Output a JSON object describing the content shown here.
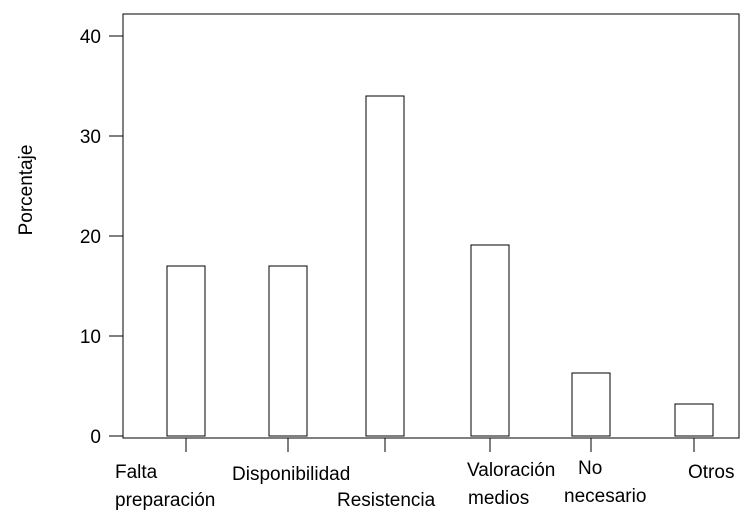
{
  "chart_data": {
    "type": "bar",
    "categories": [
      [
        "Falta",
        "preparación"
      ],
      [
        "Disponibilidad"
      ],
      [
        "Resistencia"
      ],
      [
        "Valoración",
        "medios"
      ],
      [
        "No",
        "necesario"
      ],
      [
        "Otros"
      ]
    ],
    "values": [
      17.0,
      17.0,
      34.0,
      19.1,
      6.3,
      3.2
    ],
    "ylabel": "Porcentaje",
    "xlabel": "",
    "ylim": [
      0,
      42
    ],
    "yticks": [
      0,
      10,
      20,
      30,
      40
    ],
    "grid": false,
    "legend": "none",
    "colors": {
      "bar_fill": "#ffffff",
      "bar_stroke": "#000000",
      "axis": "#000000"
    }
  }
}
